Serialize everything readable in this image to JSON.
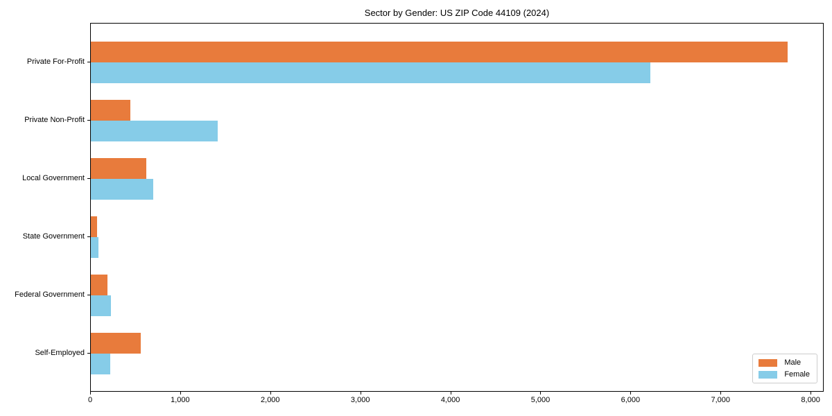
{
  "figure": {
    "title": "Sector by Gender: US ZIP Code 44109 (2024)"
  },
  "colors": {
    "male": "#e87b3c",
    "female": "#86cce8",
    "axis": "#000000",
    "legend_border": "#cccccc"
  },
  "chart_data": {
    "type": "bar",
    "orientation": "horizontal",
    "title": "Sector by Gender: US ZIP Code 44109 (2024)",
    "categories": [
      "Private For-Profit",
      "Private Non-Profit",
      "Local Government",
      "State Government",
      "Federal Government",
      "Self-Employed"
    ],
    "series": [
      {
        "name": "Male",
        "color": "#e87b3c",
        "values": [
          7740,
          440,
          615,
          70,
          185,
          555
        ]
      },
      {
        "name": "Female",
        "color": "#86cce8",
        "values": [
          6210,
          1410,
          695,
          85,
          220,
          215
        ]
      }
    ],
    "xlabel": "",
    "ylabel": "",
    "xlim": [
      0,
      8145
    ],
    "xticks": [
      0,
      1000,
      2000,
      3000,
      4000,
      5000,
      6000,
      7000,
      8000
    ],
    "xtick_labels": [
      "0",
      "1,000",
      "2,000",
      "3,000",
      "4,000",
      "5,000",
      "6,000",
      "7,000",
      "8,000"
    ],
    "grid": false,
    "legend_position": "lower right"
  }
}
